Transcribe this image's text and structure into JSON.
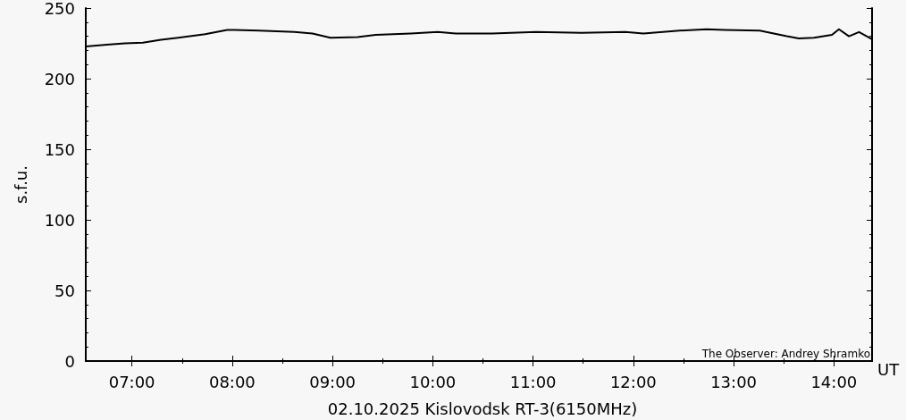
{
  "chart_data": {
    "type": "line",
    "title": "02.10.2025 Kislovodsk RT-3(6150MHz)",
    "xlabel": "UT",
    "ylabel": "s.f.u.",
    "annotations": [
      "The Observer: Andrey Shramko"
    ],
    "x": [
      6.54,
      6.75,
      6.93,
      7.11,
      7.29,
      7.46,
      7.73,
      7.95,
      8.02,
      8.27,
      8.62,
      8.8,
      8.98,
      9.25,
      9.43,
      9.78,
      10.05,
      10.23,
      10.59,
      11.03,
      11.48,
      11.92,
      12.1,
      12.46,
      12.73,
      12.91,
      13.26,
      13.4,
      13.53,
      13.65,
      13.8,
      13.98,
      14.05,
      14.15,
      14.25,
      14.38
    ],
    "values": [
      222.8,
      224,
      225,
      225.5,
      227.5,
      229,
      231.5,
      234.5,
      234.5,
      234,
      233,
      232,
      229,
      229.5,
      231,
      232,
      233,
      232,
      232,
      233,
      232.5,
      233,
      232,
      234,
      235,
      234.5,
      234,
      232,
      230,
      228.5,
      229,
      231,
      235,
      230,
      233,
      228
    ],
    "color": "#000000",
    "xlim": [
      6.54,
      14.38
    ],
    "xticks": [
      {
        "value": 7,
        "label": "07:00"
      },
      {
        "value": 8,
        "label": "08:00"
      },
      {
        "value": 9,
        "label": "09:00"
      },
      {
        "value": 10,
        "label": "10:00"
      },
      {
        "value": 11,
        "label": "11:00"
      },
      {
        "value": 12,
        "label": "12:00"
      },
      {
        "value": 13,
        "label": "13:00"
      },
      {
        "value": 14,
        "label": "14:00"
      }
    ],
    "ylim": [
      0,
      250
    ],
    "yticks": [
      0,
      50,
      100,
      150,
      200,
      250
    ],
    "grid": false,
    "marker": "none",
    "line_style": "solid"
  }
}
